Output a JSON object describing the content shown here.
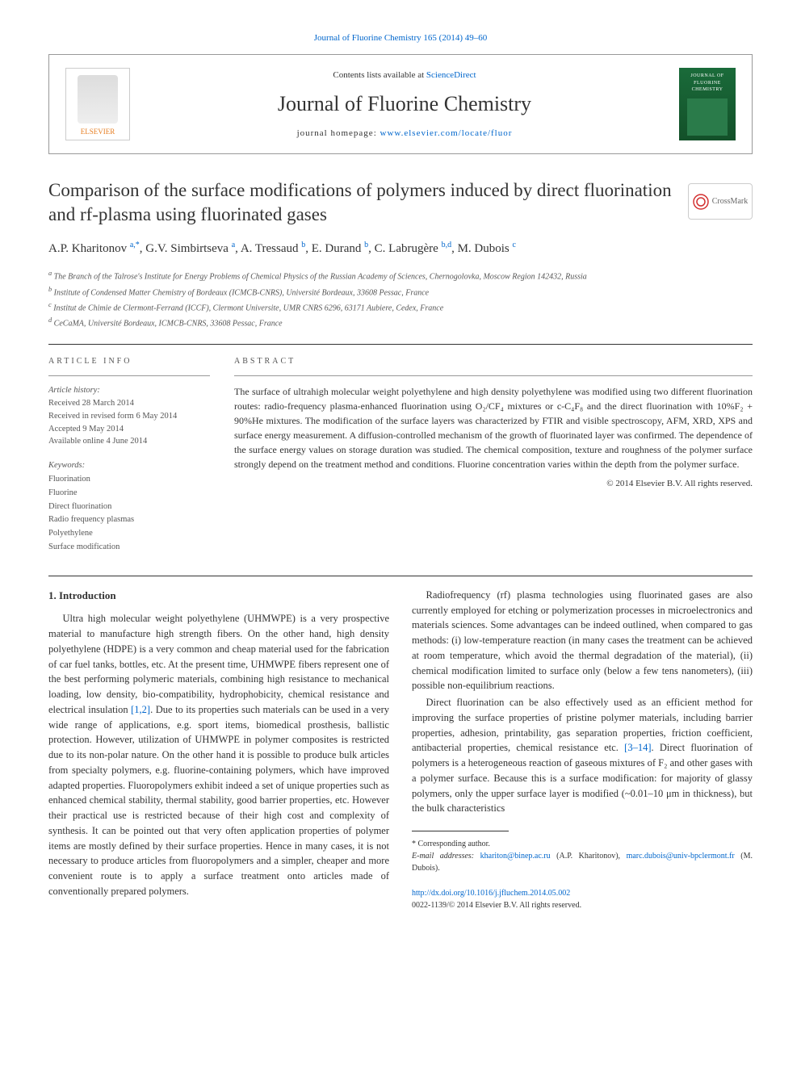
{
  "topLink": {
    "text": "Journal of Fluorine Chemistry 165 (2014) 49–60",
    "href": "#"
  },
  "headerBox": {
    "contentsLine": {
      "prefix": "Contents lists available at ",
      "linkText": "ScienceDirect"
    },
    "journalName": "Journal of Fluorine Chemistry",
    "homepage": {
      "prefix": "journal homepage: ",
      "linkText": "www.elsevier.com/locate/fluor"
    },
    "elsevierLabel": "ELSEVIER",
    "coverTitle": "JOURNAL OF FLUORINE CHEMISTRY"
  },
  "title": "Comparison of the surface modifications of polymers induced by direct fluorination and rf-plasma using fluorinated gases",
  "crossmarkLabel": "CrossMark",
  "authors": [
    {
      "name": "A.P. Kharitonov",
      "sup": "a,*"
    },
    {
      "name": "G.V. Simbirtseva",
      "sup": "a"
    },
    {
      "name": "A. Tressaud",
      "sup": "b"
    },
    {
      "name": "E. Durand",
      "sup": "b"
    },
    {
      "name": "C. Labrugère",
      "sup": "b,d"
    },
    {
      "name": "M. Dubois",
      "sup": "c"
    }
  ],
  "affiliations": [
    {
      "sup": "a",
      "text": "The Branch of the Talrose's Institute for Energy Problems of Chemical Physics of the Russian Academy of Sciences, Chernogolovka, Moscow Region 142432, Russia"
    },
    {
      "sup": "b",
      "text": "Institute of Condensed Matter Chemistry of Bordeaux (ICMCB-CNRS), Université Bordeaux, 33608 Pessac, France"
    },
    {
      "sup": "c",
      "text": "Institut de Chimie de Clermont-Ferrand (ICCF), Clermont Universite, UMR CNRS 6296, 63171 Aubiere, Cedex, France"
    },
    {
      "sup": "d",
      "text": "CeCaMA, Université Bordeaux, ICMCB-CNRS, 33608 Pessac, France"
    }
  ],
  "articleInfo": {
    "label": "ARTICLE INFO",
    "historyLabel": "Article history:",
    "history": [
      "Received 28 March 2014",
      "Received in revised form 6 May 2014",
      "Accepted 9 May 2014",
      "Available online 4 June 2014"
    ],
    "keywordsLabel": "Keywords:",
    "keywords": [
      "Fluorination",
      "Fluorine",
      "Direct fluorination",
      "Radio frequency plasmas",
      "Polyethylene",
      "Surface modification"
    ]
  },
  "abstract": {
    "label": "ABSTRACT",
    "text": "The surface of ultrahigh molecular weight polyethylene and high density polyethylene was modified using two different fluorination routes: radio-frequency plasma-enhanced fluorination using O₂/CF₄ mixtures or c-C₄F₈ and the direct fluorination with 10%F₂ + 90%He mixtures. The modification of the surface layers was characterized by FTIR and visible spectroscopy, AFM, XRD, XPS and surface energy measurement. A diffusion-controlled mechanism of the growth of fluorinated layer was confirmed. The dependence of the surface energy values on storage duration was studied. The chemical composition, texture and roughness of the polymer surface strongly depend on the treatment method and conditions. Fluorine concentration varies within the depth from the polymer surface.",
    "copyright": "© 2014 Elsevier B.V. All rights reserved."
  },
  "introHeading": "1. Introduction",
  "paragraphs": {
    "p1a": "Ultra high molecular weight polyethylene (UHMWPE) is a very prospective material to manufacture high strength fibers. On the other hand, high density polyethylene (HDPE) is a very common and cheap material used for the fabrication of car fuel tanks, bottles, etc. At the present time, UHMWPE fibers represent one of the best performing polymeric materials, combining high resistance to mechanical loading, low density, bio-compatibility, hydrophobicity, chemical resistance and electrical insulation ",
    "ref1": "[1,2]",
    "p1b": ". Due to its properties such materials can be used in a very wide range of applications, e.g. sport items, biomedical prosthesis, ballistic protection. However, utilization of UHMWPE in polymer composites is restricted due to its non-polar nature. On the other hand it is possible to produce bulk articles from specialty polymers, e.g. fluorine-containing polymers, which have improved adapted properties. Fluoropolymers exhibit indeed a set of unique properties such as enhanced chemical stability, thermal stability, good barrier properties, etc. However their practical use is restricted because of their high cost and complexity of synthesis. It can be pointed out that very often application properties of polymer items are mostly defined by their surface properties. Hence in many cases, it is not necessary to produce articles from fluoropolymers and a simpler, cheaper and more convenient route is to apply a surface treatment onto articles made of conventionally prepared polymers.",
    "p2": "Radiofrequency (rf) plasma technologies using fluorinated gases are also currently employed for etching or polymerization processes in microelectronics and materials sciences. Some advantages can be indeed outlined, when compared to gas methods: (i) low-temperature reaction (in many cases the treatment can be achieved at room temperature, which avoid the thermal degradation of the material), (ii) chemical modification limited to surface only (below a few tens nanometers), (iii) possible non-equilibrium reactions.",
    "p3a": "Direct fluorination can be also effectively used as an efficient method for improving the surface properties of pristine polymer materials, including barrier properties, adhesion, printability, gas separation properties, friction coefficient, antibacterial properties, chemical resistance etc. ",
    "ref2": "[3–14]",
    "p3b": ". Direct fluorination of polymers is a heterogeneous reaction of gaseous mixtures of F₂ and other gases with a polymer surface. Because this is a surface modification: for majority of glassy polymers, only the upper surface layer is modified (~0.01–10 μm in thickness), but the bulk characteristics"
  },
  "footnotes": {
    "corresponding": "Corresponding author.",
    "emailLabel": "E-mail addresses:",
    "emails": [
      {
        "addr": "khariton@binep.ac.ru",
        "who": " (A.P. Kharitonov),"
      },
      {
        "addr": "marc.dubois@univ-bpclermont.fr",
        "who": " (M. Dubois)."
      }
    ]
  },
  "doi": {
    "url": "http://dx.doi.org/10.1016/j.jfluchem.2014.05.002",
    "issn": "0022-1139/© 2014 Elsevier B.V. All rights reserved."
  },
  "colors": {
    "link": "#0066cc",
    "text": "#333333",
    "muted": "#555555",
    "elsevier": "#e67e22",
    "cover": "#1a6b3a"
  }
}
